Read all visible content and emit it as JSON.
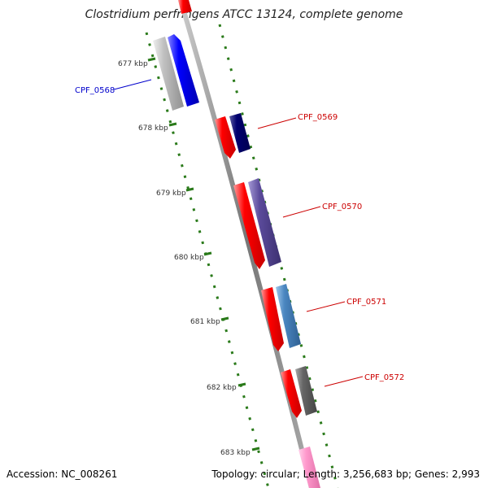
{
  "title": "Clostridium perfringens ATCC 13124, complete genome",
  "accession": "Accession: NC_008261",
  "topology": "Topology: circular; Length: 3,256,683 bp; Genes: 2,993",
  "ticks": [
    "677 kbp",
    "678 kbp",
    "679 kbp",
    "680 kbp",
    "681 kbp",
    "682 kbp",
    "683 kbp"
  ],
  "genes": [
    {
      "name": "CPF_0568",
      "color": "#0000cc"
    },
    {
      "name": "CPF_0569",
      "color": "#cc0000"
    },
    {
      "name": "CPF_0570",
      "color": "#cc0000"
    },
    {
      "name": "CPF_0571",
      "color": "#cc0000"
    },
    {
      "name": "CPF_0572",
      "color": "#cc0000"
    }
  ],
  "colors": {
    "backbone": "#888888",
    "tick_dots": "#2a7a1a",
    "gene_red": "#ff0000",
    "gene_blue": "#0000ff",
    "gene_navy": "#00006e",
    "gene_purple": "#5a4a9a",
    "gene_steel": "#4a86c0",
    "gene_gray": "#666666",
    "gene_silver": "#c0c0c0",
    "gene_pink": "#ff88cc"
  }
}
